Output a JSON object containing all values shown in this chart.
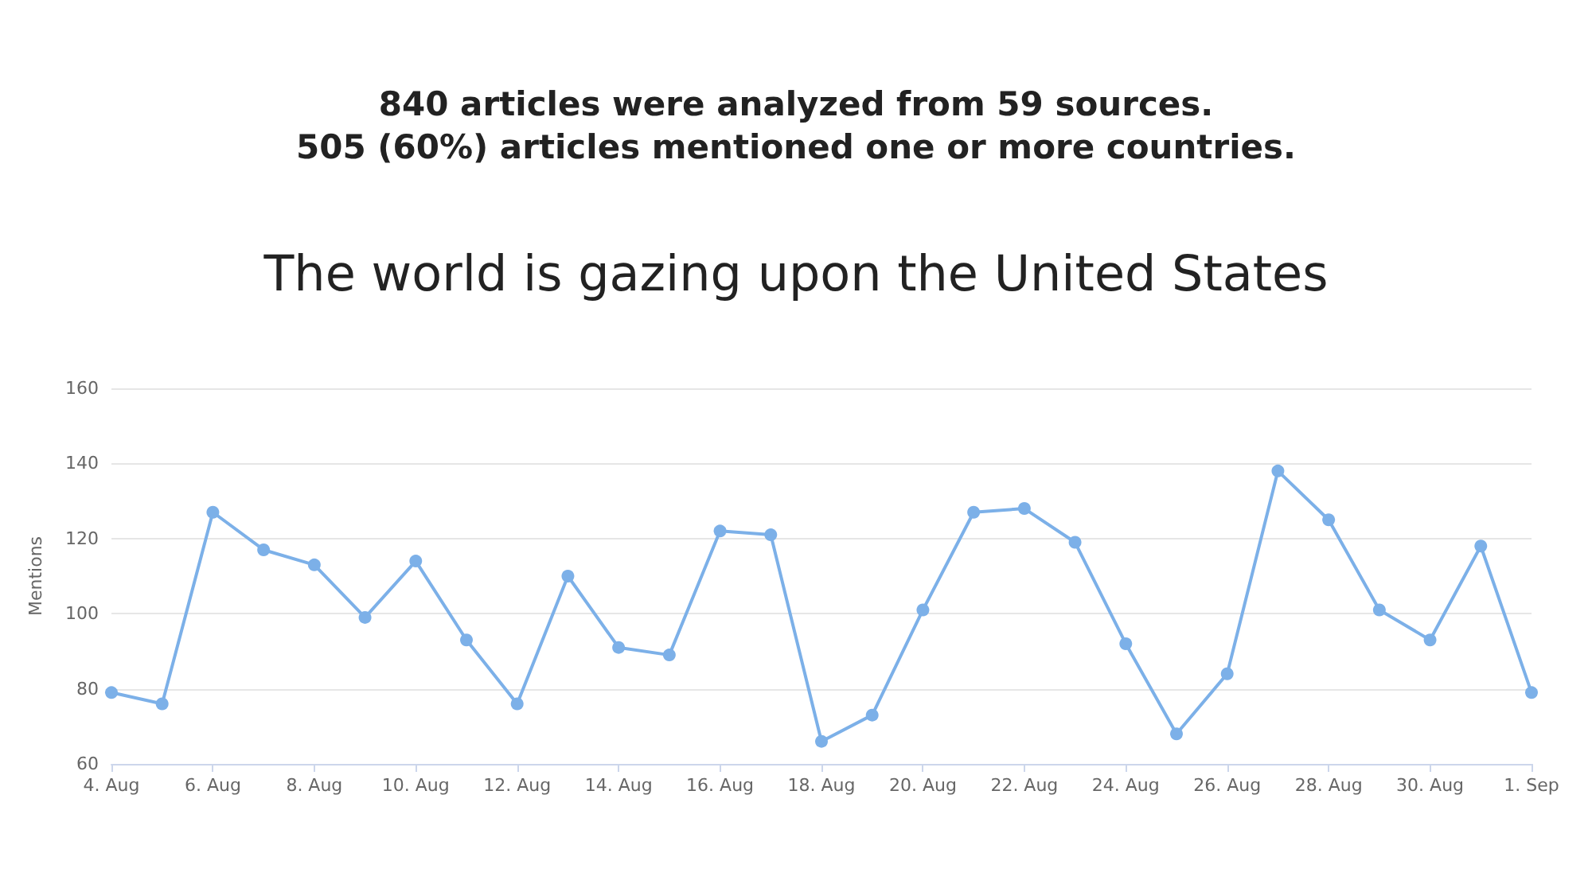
{
  "chart_data": {
    "type": "line",
    "title": "The world is gazing upon the United States",
    "annotations": [
      "840 articles were analyzed from 59 sources.",
      "505 (60%) articles mentioned one or more countries."
    ],
    "ylabel": "Mentions",
    "x": [
      "--08-04",
      "--08-05",
      "--08-06",
      "--08-07",
      "--08-08",
      "--08-09",
      "--08-10",
      "--08-11",
      "--08-12",
      "--08-13",
      "--08-14",
      "--08-15",
      "--08-16",
      "--08-17",
      "--08-18",
      "--08-19",
      "--08-20",
      "--08-21",
      "--08-22",
      "--08-23",
      "--08-24",
      "--08-25",
      "--08-26",
      "--08-27",
      "--08-28",
      "--08-29",
      "--08-30",
      "--08-31",
      "--09-01"
    ],
    "series": [
      {
        "color": "#7cb0e8",
        "values": [
          79,
          76,
          127,
          117,
          113,
          99,
          114,
          93,
          76,
          110,
          91,
          89,
          122,
          121,
          66,
          73,
          101,
          127,
          128,
          119,
          92,
          68,
          84,
          138,
          125,
          101,
          93,
          118,
          79
        ]
      }
    ],
    "xlim": [
      "--08-04",
      "--09-01"
    ],
    "xticks": [
      {
        "value": "--08-04",
        "label": "4. Aug"
      },
      {
        "value": "--08-06",
        "label": "6. Aug"
      },
      {
        "value": "--08-08",
        "label": "8. Aug"
      },
      {
        "value": "--08-10",
        "label": "10. Aug"
      },
      {
        "value": "--08-12",
        "label": "12. Aug"
      },
      {
        "value": "--08-14",
        "label": "14. Aug"
      },
      {
        "value": "--08-16",
        "label": "16. Aug"
      },
      {
        "value": "--08-18",
        "label": "18. Aug"
      },
      {
        "value": "--08-20",
        "label": "20. Aug"
      },
      {
        "value": "--08-22",
        "label": "22. Aug"
      },
      {
        "value": "--08-24",
        "label": "24. Aug"
      },
      {
        "value": "--08-26",
        "label": "26. Aug"
      },
      {
        "value": "--08-28",
        "label": "28. Aug"
      },
      {
        "value": "--08-30",
        "label": "30. Aug"
      },
      {
        "value": "--09-01",
        "label": "1. Sep"
      }
    ],
    "ylim": [
      60,
      160
    ],
    "yticks": [
      60,
      80,
      100,
      120,
      140,
      160
    ],
    "grid": "y",
    "marker": "circle",
    "line_style": "solid"
  }
}
